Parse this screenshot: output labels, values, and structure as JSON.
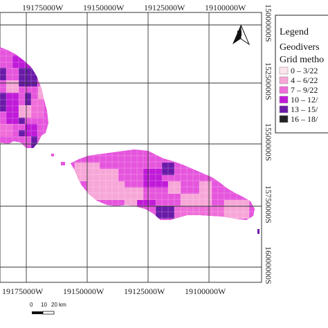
{
  "map": {
    "top_ticks": [
      "19175000W",
      "19150000W",
      "19125000W",
      "19100000W"
    ],
    "bottom_ticks": [
      "19175000W",
      "19150000W",
      "19125000W",
      "19100000W"
    ],
    "right_ticks": [
      "15000000S",
      "15250000S",
      "15500000S",
      "15750000S",
      "16000000S"
    ],
    "north_label": "N",
    "scalebar": {
      "labels": [
        "0",
        "10",
        "20 km"
      ]
    }
  },
  "legend": {
    "title": "Legend",
    "subtitle_1": "Geodivers",
    "subtitle_2": "Grid metho",
    "items": [
      {
        "label": "0 – 3/22",
        "color": "#fde4ee"
      },
      {
        "label": "4 – 6/22",
        "color": "#f7a6d8"
      },
      {
        "label": "7 – 9/22",
        "color": "#f06ed9"
      },
      {
        "label": "10 – 12/",
        "color": "#c01ad8"
      },
      {
        "label": "13 – 15/",
        "color": "#6a1aa8"
      },
      {
        "label": "16 – 18/",
        "color": "#222222"
      }
    ]
  },
  "colors": {
    "island_base": "#e655dd",
    "light_pink": "#f7a6d8",
    "purple": "#c01ad8",
    "dark_purple": "#6a1aa8",
    "grid_line": "#333333",
    "ocean": "#ffffff"
  }
}
